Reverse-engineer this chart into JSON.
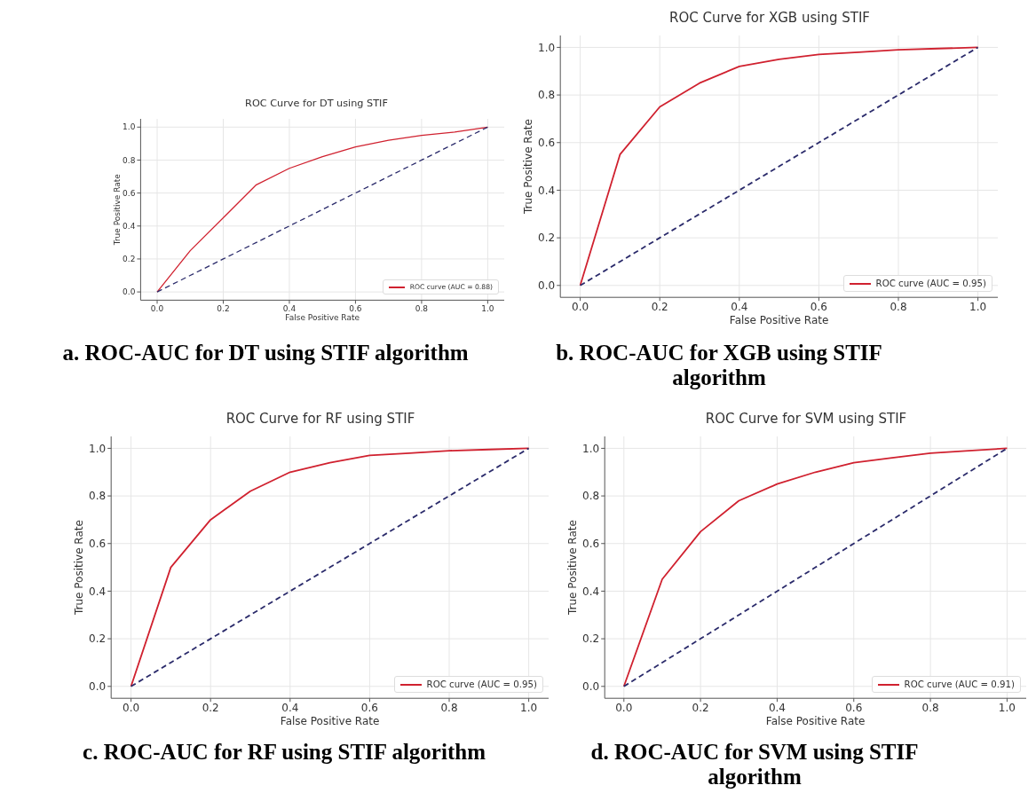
{
  "chart_data": [
    {
      "type": "line",
      "title": "ROC Curve for DT using STIF",
      "xlabel": "False Positive Rate",
      "ylabel": "True Positive Rate",
      "annotations": [
        "a. ROC-AUC for DT using STIF algorithm"
      ],
      "x": [
        0,
        0.1,
        0.2,
        0.3,
        0.4,
        0.5,
        0.6,
        0.7,
        0.8,
        0.9,
        1.0
      ],
      "series": [
        {
          "name": "ROC curve (AUC = 0.88)",
          "color": "#d0212f",
          "values": [
            0,
            0.25,
            0.45,
            0.65,
            0.75,
            0.82,
            0.88,
            0.92,
            0.95,
            0.97,
            1.0
          ]
        },
        {
          "color": "#2b2b6b",
          "values": [
            0,
            0.1,
            0.2,
            0.3,
            0.4,
            0.5,
            0.6,
            0.7,
            0.8,
            0.9,
            1.0
          ],
          "line_style": "dashed"
        }
      ],
      "xlim": [
        -0.05,
        1.05
      ],
      "ylim": [
        -0.05,
        1.05
      ],
      "xticks": [
        {
          "value": 0,
          "label": "0.0"
        },
        {
          "value": 0.2,
          "label": "0.2"
        },
        {
          "value": 0.4,
          "label": "0.4"
        },
        {
          "value": 0.6,
          "label": "0.6"
        },
        {
          "value": 0.8,
          "label": "0.8"
        },
        {
          "value": 1,
          "label": "1.0"
        }
      ],
      "yticks": [
        {
          "value": 0,
          "label": "0.0"
        },
        {
          "value": 0.2,
          "label": "0.2"
        },
        {
          "value": 0.4,
          "label": "0.4"
        },
        {
          "value": 0.6,
          "label": "0.6"
        },
        {
          "value": 0.8,
          "label": "0.8"
        },
        {
          "value": 1,
          "label": "1.0"
        }
      ],
      "grid": true,
      "legend": "bottom right"
    },
    {
      "type": "line",
      "title": "ROC Curve for XGB using STIF",
      "xlabel": "False Positive Rate",
      "ylabel": "True Positive Rate",
      "annotations": [
        "b. ROC-AUC for XGB using STIF algorithm"
      ],
      "x": [
        0,
        0.1,
        0.2,
        0.3,
        0.4,
        0.5,
        0.6,
        0.7,
        0.8,
        0.9,
        1.0
      ],
      "series": [
        {
          "name": "ROC curve (AUC = 0.95)",
          "color": "#d0212f",
          "values": [
            0,
            0.55,
            0.75,
            0.85,
            0.92,
            0.95,
            0.97,
            0.98,
            0.99,
            0.995,
            1.0
          ]
        },
        {
          "color": "#2b2b6b",
          "values": [
            0,
            0.1,
            0.2,
            0.3,
            0.4,
            0.5,
            0.6,
            0.7,
            0.8,
            0.9,
            1.0
          ],
          "line_style": "dashed"
        }
      ],
      "xlim": [
        -0.05,
        1.05
      ],
      "ylim": [
        -0.05,
        1.05
      ],
      "xticks": [
        {
          "value": 0,
          "label": "0.0"
        },
        {
          "value": 0.2,
          "label": "0.2"
        },
        {
          "value": 0.4,
          "label": "0.4"
        },
        {
          "value": 0.6,
          "label": "0.6"
        },
        {
          "value": 0.8,
          "label": "0.8"
        },
        {
          "value": 1,
          "label": "1.0"
        }
      ],
      "yticks": [
        {
          "value": 0,
          "label": "0.0"
        },
        {
          "value": 0.2,
          "label": "0.2"
        },
        {
          "value": 0.4,
          "label": "0.4"
        },
        {
          "value": 0.6,
          "label": "0.6"
        },
        {
          "value": 0.8,
          "label": "0.8"
        },
        {
          "value": 1,
          "label": "1.0"
        }
      ],
      "grid": true,
      "legend": "bottom right"
    },
    {
      "type": "line",
      "title": "ROC Curve for RF using STIF",
      "xlabel": "False Positive Rate",
      "ylabel": "True Positive Rate",
      "annotations": [
        "c. ROC-AUC for RF using STIF algorithm"
      ],
      "x": [
        0,
        0.1,
        0.2,
        0.3,
        0.4,
        0.5,
        0.6,
        0.7,
        0.8,
        0.9,
        1.0
      ],
      "series": [
        {
          "name": "ROC curve (AUC = 0.95)",
          "color": "#d0212f",
          "values": [
            0,
            0.5,
            0.7,
            0.82,
            0.9,
            0.94,
            0.97,
            0.98,
            0.99,
            0.995,
            1.0
          ]
        },
        {
          "color": "#2b2b6b",
          "values": [
            0,
            0.1,
            0.2,
            0.3,
            0.4,
            0.5,
            0.6,
            0.7,
            0.8,
            0.9,
            1.0
          ],
          "line_style": "dashed"
        }
      ],
      "xlim": [
        -0.05,
        1.05
      ],
      "ylim": [
        -0.05,
        1.05
      ],
      "xticks": [
        {
          "value": 0,
          "label": "0.0"
        },
        {
          "value": 0.2,
          "label": "0.2"
        },
        {
          "value": 0.4,
          "label": "0.4"
        },
        {
          "value": 0.6,
          "label": "0.6"
        },
        {
          "value": 0.8,
          "label": "0.8"
        },
        {
          "value": 1,
          "label": "1.0"
        }
      ],
      "yticks": [
        {
          "value": 0,
          "label": "0.0"
        },
        {
          "value": 0.2,
          "label": "0.2"
        },
        {
          "value": 0.4,
          "label": "0.4"
        },
        {
          "value": 0.6,
          "label": "0.6"
        },
        {
          "value": 0.8,
          "label": "0.8"
        },
        {
          "value": 1,
          "label": "1.0"
        }
      ],
      "grid": true,
      "legend": "bottom right"
    },
    {
      "type": "line",
      "title": "ROC Curve for SVM using STIF",
      "xlabel": "False Positive Rate",
      "ylabel": "True Positive Rate",
      "annotations": [
        "d. ROC-AUC for SVM using STIF algorithm"
      ],
      "x": [
        0,
        0.1,
        0.2,
        0.3,
        0.4,
        0.5,
        0.6,
        0.7,
        0.8,
        0.9,
        1.0
      ],
      "series": [
        {
          "name": "ROC curve (AUC = 0.91)",
          "color": "#d0212f",
          "values": [
            0,
            0.45,
            0.65,
            0.78,
            0.85,
            0.9,
            0.94,
            0.96,
            0.98,
            0.99,
            1.0
          ]
        },
        {
          "color": "#2b2b6b",
          "values": [
            0,
            0.1,
            0.2,
            0.3,
            0.4,
            0.5,
            0.6,
            0.7,
            0.8,
            0.9,
            1.0
          ],
          "line_style": "dashed"
        }
      ],
      "xlim": [
        -0.05,
        1.05
      ],
      "ylim": [
        -0.05,
        1.05
      ],
      "xticks": [
        {
          "value": 0,
          "label": "0.0"
        },
        {
          "value": 0.2,
          "label": "0.2"
        },
        {
          "value": 0.4,
          "label": "0.4"
        },
        {
          "value": 0.6,
          "label": "0.6"
        },
        {
          "value": 0.8,
          "label": "0.8"
        },
        {
          "value": 1,
          "label": "1.0"
        }
      ],
      "yticks": [
        {
          "value": 0,
          "label": "0.0"
        },
        {
          "value": 0.2,
          "label": "0.2"
        },
        {
          "value": 0.4,
          "label": "0.4"
        },
        {
          "value": 0.6,
          "label": "0.6"
        },
        {
          "value": 0.8,
          "label": "0.8"
        },
        {
          "value": 1,
          "label": "1.0"
        }
      ],
      "grid": true,
      "legend": "bottom right"
    }
  ]
}
